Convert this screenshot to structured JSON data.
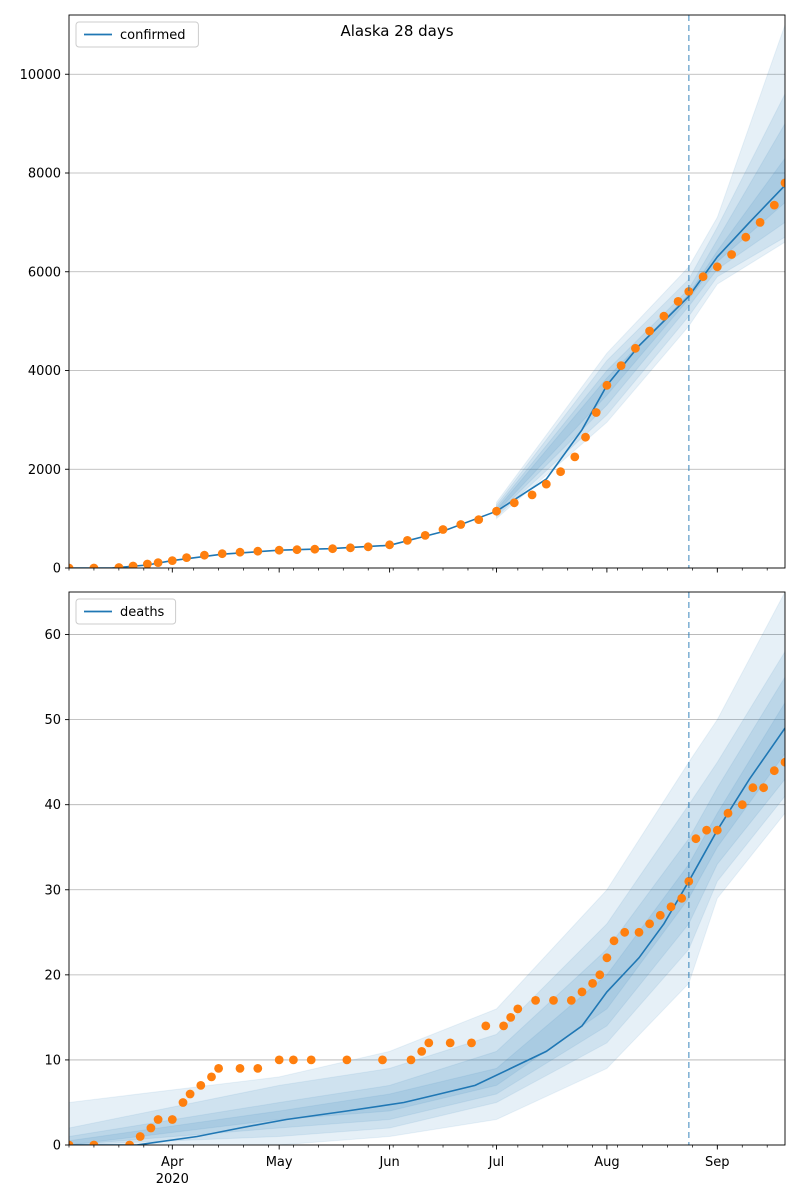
{
  "figure_title": "Alaska 28 days",
  "x_ticks": [
    {
      "label": "Apr",
      "date": "2020-04-01"
    },
    {
      "label": "May",
      "date": "2020-05-01"
    },
    {
      "label": "Jun",
      "date": "2020-06-01"
    },
    {
      "label": "Jul",
      "date": "2020-07-01"
    },
    {
      "label": "Aug",
      "date": "2020-08-01"
    },
    {
      "label": "Sep",
      "date": "2020-09-01"
    }
  ],
  "x_year_label": "2020",
  "colors": {
    "model": "#1f77b4",
    "observed": "#ff7f0e",
    "band": "#1f77b4",
    "grid": "#b0b0b0",
    "forecast_line": "#1f77b4"
  },
  "chart_data": [
    {
      "type": "line",
      "legend": "confirmed",
      "legend_position": "top-left",
      "grid": true,
      "x_range": [
        "2020-03-03",
        "2020-09-20"
      ],
      "ylim": [
        0,
        11200
      ],
      "yticks": [
        0,
        2000,
        4000,
        6000,
        8000,
        10000
      ],
      "forecast_start": "2020-08-24",
      "model": {
        "dates": [
          "2020-03-03",
          "2020-03-15",
          "2020-03-25",
          "2020-04-01",
          "2020-04-15",
          "2020-05-01",
          "2020-05-15",
          "2020-06-01",
          "2020-06-15",
          "2020-07-01",
          "2020-07-15",
          "2020-07-25",
          "2020-08-01",
          "2020-08-10",
          "2020-08-24",
          "2020-09-01",
          "2020-09-10",
          "2020-09-20"
        ],
        "values": [
          0,
          0,
          60,
          150,
          280,
          360,
          390,
          460,
          720,
          1150,
          1800,
          2800,
          3700,
          4500,
          5500,
          6300,
          7000,
          7750
        ]
      },
      "bands": [
        {
          "dates": [
            "2020-07-01",
            "2020-08-01",
            "2020-08-24",
            "2020-09-01",
            "2020-09-20"
          ],
          "lower": [
            1120,
            3500,
            5450,
            6200,
            7400
          ],
          "upper": [
            1180,
            3850,
            5550,
            6420,
            8300
          ]
        },
        {
          "dates": [
            "2020-07-01",
            "2020-08-01",
            "2020-08-24",
            "2020-09-01",
            "2020-09-20"
          ],
          "lower": [
            1080,
            3300,
            5300,
            6050,
            7000
          ],
          "upper": [
            1230,
            4000,
            5650,
            6650,
            9000
          ]
        },
        {
          "dates": [
            "2020-07-01",
            "2020-08-01",
            "2020-08-24",
            "2020-09-01",
            "2020-09-20"
          ],
          "lower": [
            1040,
            3100,
            5100,
            5900,
            6700
          ],
          "upper": [
            1280,
            4200,
            5850,
            6900,
            9600
          ]
        },
        {
          "dates": [
            "2020-07-01",
            "2020-08-01",
            "2020-08-24",
            "2020-09-01",
            "2020-09-20"
          ],
          "lower": [
            1000,
            2950,
            4900,
            5750,
            6600
          ],
          "upper": [
            1330,
            4350,
            6100,
            7100,
            11000
          ]
        }
      ],
      "observed": {
        "dates": [
          "2020-03-03",
          "2020-03-10",
          "2020-03-17",
          "2020-03-21",
          "2020-03-25",
          "2020-03-28",
          "2020-04-01",
          "2020-04-05",
          "2020-04-10",
          "2020-04-15",
          "2020-04-20",
          "2020-04-25",
          "2020-05-01",
          "2020-05-06",
          "2020-05-11",
          "2020-05-16",
          "2020-05-21",
          "2020-05-26",
          "2020-06-01",
          "2020-06-06",
          "2020-06-11",
          "2020-06-16",
          "2020-06-21",
          "2020-06-26",
          "2020-07-01",
          "2020-07-06",
          "2020-07-11",
          "2020-07-15",
          "2020-07-19",
          "2020-07-23",
          "2020-07-26",
          "2020-07-29",
          "2020-08-01",
          "2020-08-05",
          "2020-08-09",
          "2020-08-13",
          "2020-08-17",
          "2020-08-21",
          "2020-08-24",
          "2020-08-28",
          "2020-09-01",
          "2020-09-05",
          "2020-09-09",
          "2020-09-13",
          "2020-09-17",
          "2020-09-20"
        ],
        "values": [
          0,
          0,
          10,
          40,
          80,
          110,
          150,
          210,
          260,
          290,
          320,
          340,
          360,
          370,
          380,
          390,
          410,
          430,
          470,
          560,
          660,
          780,
          880,
          980,
          1150,
          1320,
          1480,
          1700,
          1950,
          2250,
          2650,
          3150,
          3700,
          4100,
          4450,
          4800,
          5100,
          5400,
          5600,
          5900,
          6100,
          6350,
          6700,
          7000,
          7350,
          7800
        ]
      }
    },
    {
      "type": "line",
      "legend": "deaths",
      "legend_position": "top-left",
      "grid": true,
      "x_range": [
        "2020-03-03",
        "2020-09-20"
      ],
      "ylim": [
        0,
        65
      ],
      "yticks": [
        0,
        10,
        20,
        30,
        40,
        50,
        60
      ],
      "forecast_start": "2020-08-24",
      "model": {
        "dates": [
          "2020-03-03",
          "2020-03-22",
          "2020-04-08",
          "2020-04-20",
          "2020-05-03",
          "2020-05-20",
          "2020-06-05",
          "2020-06-15",
          "2020-06-25",
          "2020-07-05",
          "2020-07-15",
          "2020-07-25",
          "2020-08-01",
          "2020-08-10",
          "2020-08-17",
          "2020-08-24",
          "2020-09-01",
          "2020-09-10",
          "2020-09-20"
        ],
        "values": [
          0,
          0,
          1,
          2,
          3,
          4,
          5,
          6,
          7,
          9,
          11,
          14,
          18,
          22,
          26,
          31,
          37,
          43,
          49
        ]
      },
      "bands": [
        {
          "dates": [
            "2020-03-03",
            "2020-05-01",
            "2020-06-01",
            "2020-07-01",
            "2020-08-01",
            "2020-08-24",
            "2020-09-01",
            "2020-09-20"
          ],
          "lower": [
            0,
            3,
            4,
            7,
            16,
            29,
            35,
            46
          ],
          "upper": [
            0.5,
            4,
            6,
            9,
            20,
            33,
            39,
            52
          ]
        },
        {
          "dates": [
            "2020-03-03",
            "2020-05-01",
            "2020-06-01",
            "2020-07-01",
            "2020-08-01",
            "2020-08-24",
            "2020-09-01",
            "2020-09-20"
          ],
          "lower": [
            0,
            2,
            3,
            6,
            14,
            26,
            33,
            43
          ],
          "upper": [
            1,
            5,
            7,
            11,
            23,
            36,
            42,
            55
          ]
        },
        {
          "dates": [
            "2020-03-03",
            "2020-05-01",
            "2020-06-01",
            "2020-07-01",
            "2020-08-01",
            "2020-08-24",
            "2020-09-01",
            "2020-09-20"
          ],
          "lower": [
            0,
            1,
            2,
            5,
            12,
            23,
            31,
            41
          ],
          "upper": [
            2,
            7,
            9,
            13,
            26,
            40,
            45,
            58
          ]
        },
        {
          "dates": [
            "2020-03-03",
            "2020-05-01",
            "2020-06-01",
            "2020-07-01",
            "2020-08-01",
            "2020-08-24",
            "2020-09-01",
            "2020-09-20"
          ],
          "lower": [
            0,
            0,
            1,
            3,
            9,
            19,
            29,
            39
          ],
          "upper": [
            5,
            8,
            11,
            16,
            30,
            45,
            50,
            65
          ]
        }
      ],
      "observed": {
        "dates": [
          "2020-03-03",
          "2020-03-10",
          "2020-03-20",
          "2020-03-23",
          "2020-03-26",
          "2020-03-28",
          "2020-04-01",
          "2020-04-04",
          "2020-04-06",
          "2020-04-09",
          "2020-04-12",
          "2020-04-14",
          "2020-04-20",
          "2020-04-25",
          "2020-05-01",
          "2020-05-05",
          "2020-05-10",
          "2020-05-20",
          "2020-05-30",
          "2020-06-07",
          "2020-06-10",
          "2020-06-12",
          "2020-06-18",
          "2020-06-24",
          "2020-06-28",
          "2020-07-03",
          "2020-07-05",
          "2020-07-07",
          "2020-07-12",
          "2020-07-17",
          "2020-07-22",
          "2020-07-25",
          "2020-07-28",
          "2020-07-30",
          "2020-08-01",
          "2020-08-03",
          "2020-08-06",
          "2020-08-10",
          "2020-08-13",
          "2020-08-16",
          "2020-08-19",
          "2020-08-22",
          "2020-08-24",
          "2020-08-26",
          "2020-08-29",
          "2020-09-01",
          "2020-09-04",
          "2020-09-08",
          "2020-09-11",
          "2020-09-14",
          "2020-09-17",
          "2020-09-20"
        ],
        "values": [
          0,
          0,
          0,
          1,
          2,
          3,
          3,
          5,
          6,
          7,
          8,
          9,
          9,
          9,
          10,
          10,
          10,
          10,
          10,
          10,
          11,
          12,
          12,
          12,
          14,
          14,
          15,
          16,
          17,
          17,
          17,
          18,
          19,
          20,
          22,
          24,
          25,
          25,
          26,
          27,
          28,
          29,
          31,
          36,
          37,
          37,
          39,
          40,
          42,
          42,
          44,
          45
        ]
      }
    }
  ]
}
